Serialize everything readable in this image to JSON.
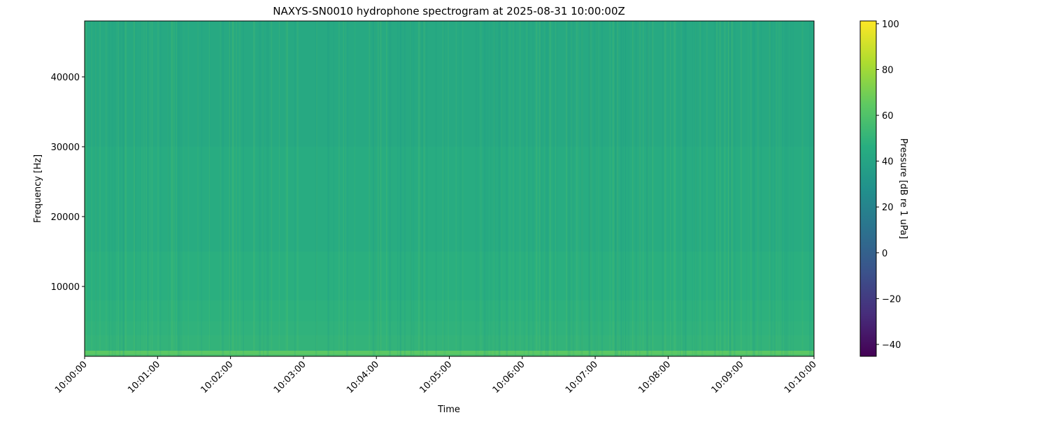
{
  "chart_data": {
    "type": "heatmap",
    "title": "NAXYS-SN0010 hydrophone spectrogram at 2025-08-31 10:00:00Z",
    "xlabel": "Time",
    "ylabel": "Frequency [Hz]",
    "x_ticks": [
      "10:00:00",
      "10:01:00",
      "10:02:00",
      "10:03:00",
      "10:04:00",
      "10:05:00",
      "10:06:00",
      "10:07:00",
      "10:08:00",
      "10:09:00",
      "10:10:00"
    ],
    "xlim": [
      "10:00:00",
      "10:10:00"
    ],
    "y_ticks": [
      10000,
      20000,
      30000,
      40000
    ],
    "ylim": [
      0,
      48000
    ],
    "colormap": "viridis",
    "colorbar": {
      "label": "Pressure [dB re 1 uPa]",
      "ticks": [
        -40,
        -20,
        0,
        20,
        40,
        60,
        80,
        100
      ],
      "range": [
        -45.2,
        101.2
      ]
    },
    "frequency_profile_db": [
      {
        "f_low": 0,
        "f_high": 300,
        "db": 58
      },
      {
        "f_low": 300,
        "f_high": 800,
        "db": 64
      },
      {
        "f_low": 800,
        "f_high": 3000,
        "db": 50
      },
      {
        "f_low": 3000,
        "f_high": 5000,
        "db": 49
      },
      {
        "f_low": 5000,
        "f_high": 8000,
        "db": 48
      },
      {
        "f_low": 8000,
        "f_high": 15000,
        "db": 47
      },
      {
        "f_low": 15000,
        "f_high": 30000,
        "db": 45
      },
      {
        "f_low": 30000,
        "f_high": 48000,
        "db": 43
      }
    ]
  }
}
